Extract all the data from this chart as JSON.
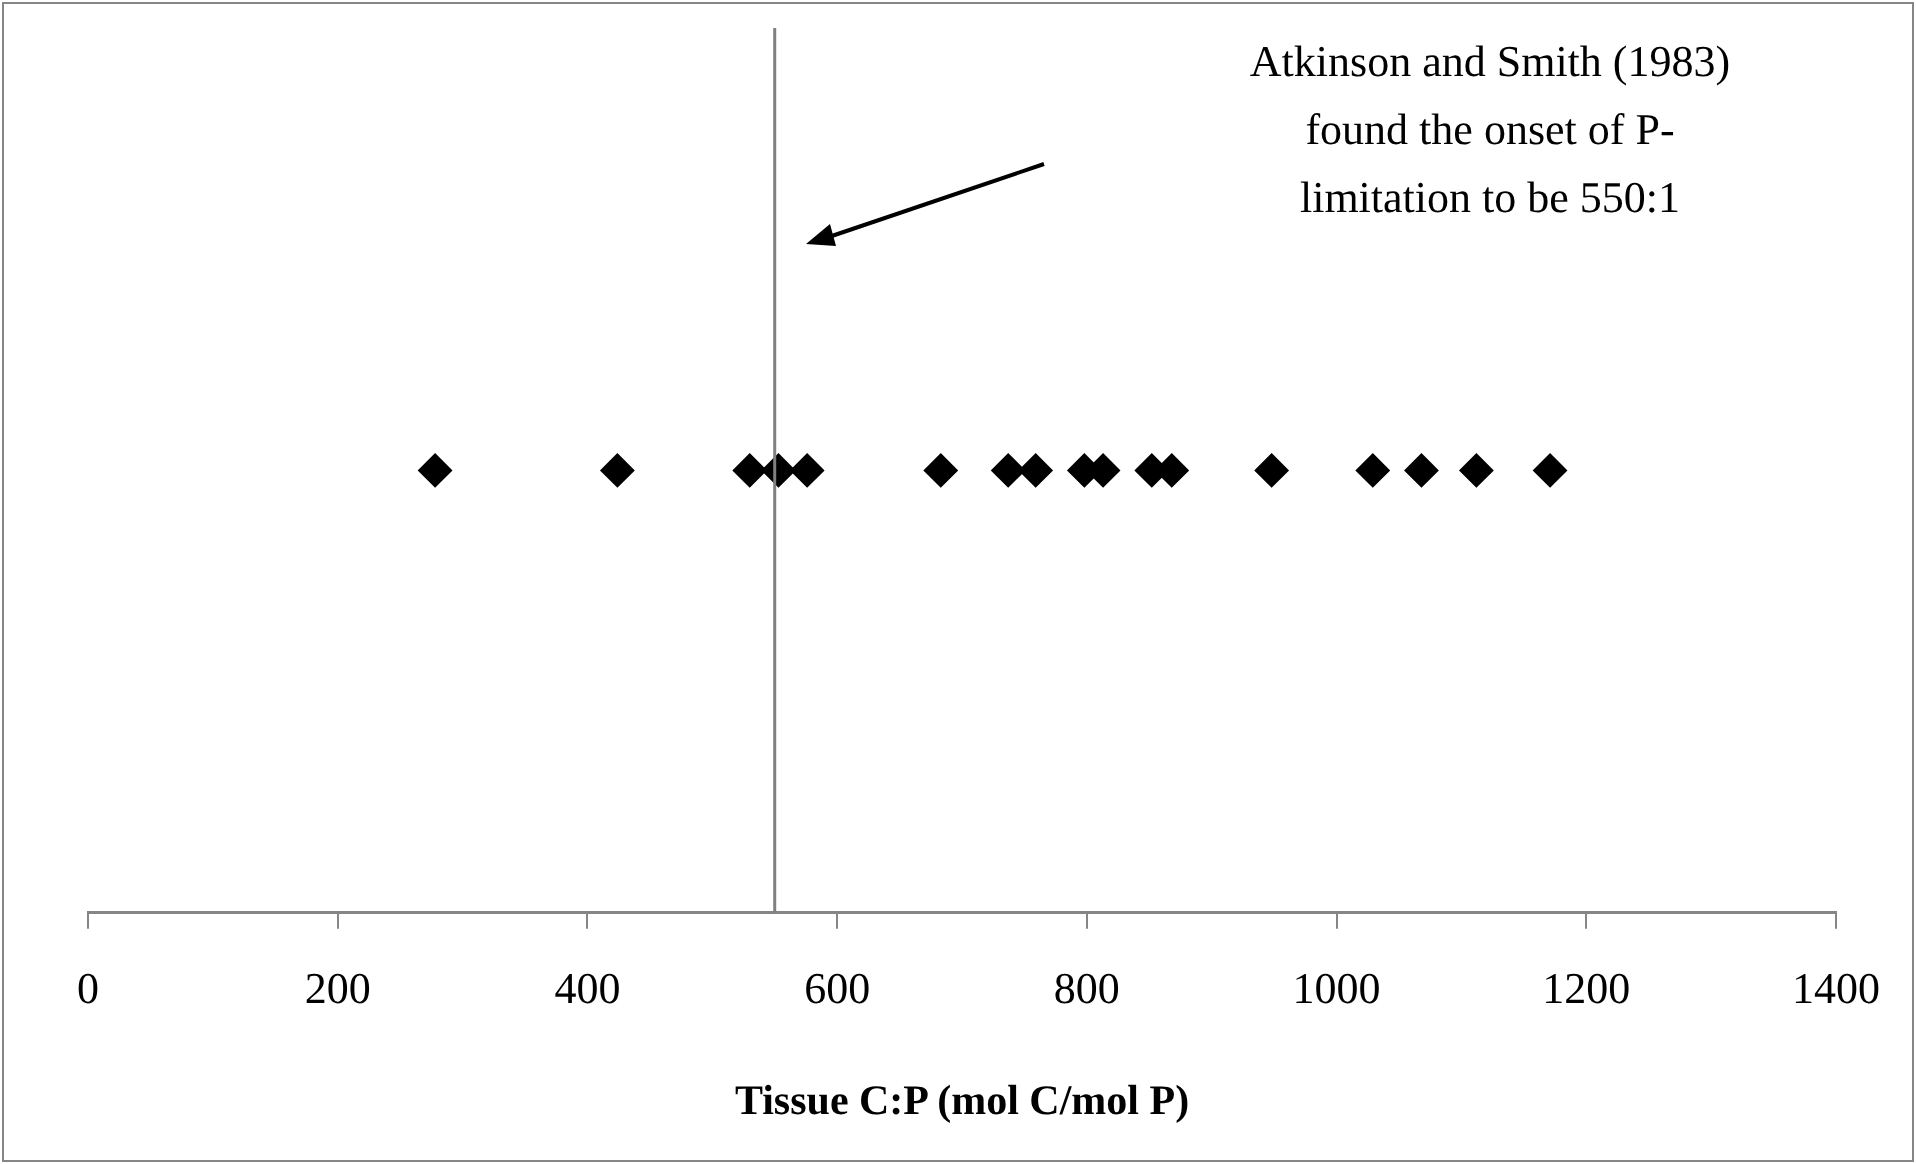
{
  "chart_data": {
    "type": "scatter",
    "orientation": "horizontal",
    "xlabel": "Tissue C:P (mol C/mol P)",
    "categories": [
      null
    ],
    "series": [
      {
        "color": "#000000",
        "values": [
          278
        ]
      },
      {
        "color": "#000000",
        "values": [
          424
        ]
      },
      {
        "color": "#000000",
        "values": [
          530
        ]
      },
      {
        "color": "#000000",
        "values": [
          553
        ]
      },
      {
        "color": "#000000",
        "values": [
          576
        ]
      },
      {
        "color": "#000000",
        "values": [
          683
        ]
      },
      {
        "color": "#000000",
        "values": [
          737
        ]
      },
      {
        "color": "#000000",
        "values": [
          759
        ]
      },
      {
        "color": "#000000",
        "values": [
          798
        ]
      },
      {
        "color": "#000000",
        "values": [
          813
        ]
      },
      {
        "color": "#000000",
        "values": [
          852
        ]
      },
      {
        "color": "#000000",
        "values": [
          868
        ]
      },
      {
        "color": "#000000",
        "values": [
          948
        ]
      },
      {
        "color": "#000000",
        "values": [
          1029
        ]
      },
      {
        "color": "#000000",
        "values": [
          1068
        ]
      },
      {
        "color": "#000000",
        "values": [
          1112
        ]
      },
      {
        "color": "#000000",
        "values": [
          1171
        ]
      }
    ],
    "marker": "diamond",
    "xlim": [
      0,
      1400
    ],
    "xticks": [
      0,
      200,
      400,
      600,
      800,
      1000,
      1200,
      1400
    ],
    "ref_lines": [
      {
        "axis": "x",
        "value": 550,
        "color": "#808080"
      }
    ],
    "annotations": [
      "Atkinson and Smith (1983)\nfound the onset of P-\nlimitation to be 550:1"
    ],
    "grid": false,
    "legend": false
  }
}
